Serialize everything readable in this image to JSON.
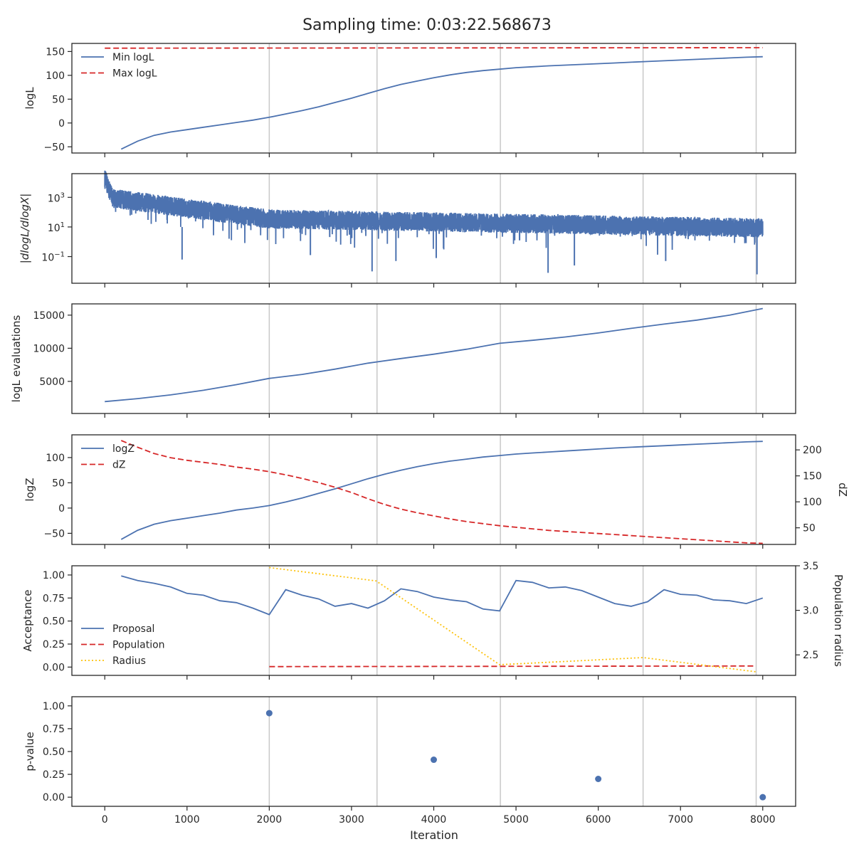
{
  "chart_data": {
    "title": "Sampling time: 0:03:22.568673",
    "xlabel": "Iteration",
    "xlim": [
      -400,
      8400
    ],
    "x_ticks": [
      0,
      1000,
      2000,
      3000,
      4000,
      5000,
      6000,
      7000,
      8000
    ],
    "vlines": [
      2000,
      3310,
      4810,
      6545,
      7920
    ],
    "colors": {
      "blue": "#4c72b0",
      "red": "#d62728",
      "gold": "#fdc20c",
      "vline": "#c8c8c8",
      "axes": "#262626"
    },
    "panels": [
      {
        "type": "line",
        "ylabel": "logL",
        "ylim": [
          -63,
          167
        ],
        "y_ticks": [
          -50,
          0,
          50,
          100,
          150
        ],
        "legend": {
          "placement": "top-left",
          "entries": [
            "Min logL",
            "Max logL"
          ]
        },
        "series": [
          {
            "name": "Min logL",
            "style": "solid",
            "color": "blue",
            "x": [
              200,
              400,
              600,
              800,
              1000,
              1200,
              1400,
              1600,
              1800,
              2000,
              2200,
              2400,
              2600,
              2800,
              3000,
              3200,
              3400,
              3600,
              3800,
              4000,
              4200,
              4400,
              4600,
              4800,
              5000,
              5200,
              5400,
              5600,
              5800,
              6000,
              6200,
              6400,
              6600,
              6800,
              7000,
              7200,
              7400,
              7600,
              7800,
              8000
            ],
            "y": [
              -55,
              -38,
              -26,
              -19,
              -14,
              -9,
              -4,
              1,
              6,
              12,
              19,
              26,
              34,
              43,
              52,
              62,
              72,
              81,
              88,
              95,
              101,
              106,
              110,
              113,
              116,
              118,
              120,
              121.5,
              123,
              124.5,
              126,
              127.5,
              129,
              130.5,
              132,
              133.5,
              135,
              136.5,
              138,
              139
            ]
          },
          {
            "name": "Max logL",
            "style": "dashed",
            "color": "red",
            "x": [
              0,
              8000
            ],
            "y": [
              157,
              158
            ]
          }
        ]
      },
      {
        "type": "line",
        "ylabel": "|dlogL/dlogX|",
        "yscale": "log",
        "ylim_log10": [
          -2.8,
          4.6
        ],
        "y_ticks_log10": [
          -1,
          1,
          3
        ],
        "y_tick_labels": [
          "10",
          "10",
          "10"
        ],
        "y_tick_exponents": [
          "−1",
          "1",
          "3"
        ],
        "series": [
          {
            "name": "",
            "style": "solid",
            "color": "blue",
            "generated_noise": true,
            "x_range": [
              0,
              8000
            ],
            "points": 8000,
            "start_log10": 4.3,
            "mid_log10_at_2000": 1.6,
            "end_log10": 1.0,
            "spikes_down": [
              {
                "x": 940,
                "log10": -1.2
              },
              {
                "x": 2500,
                "log10": -0.9
              },
              {
                "x": 3250,
                "log10": -2.0
              },
              {
                "x": 3540,
                "log10": -1.3
              },
              {
                "x": 4030,
                "log10": -1.1
              },
              {
                "x": 5390,
                "log10": -2.1
              },
              {
                "x": 5710,
                "log10": -1.6
              },
              {
                "x": 6820,
                "log10": -1.3
              },
              {
                "x": 7930,
                "log10": -2.2
              }
            ]
          }
        ]
      },
      {
        "type": "line",
        "ylabel": "logL evaluations",
        "ylim": [
          150,
          16700
        ],
        "y_ticks": [
          5000,
          10000,
          15000
        ],
        "series": [
          {
            "name": "",
            "style": "solid",
            "color": "blue",
            "x": [
              0,
              400,
              800,
              1200,
              1600,
              2000,
              2400,
              2800,
              3200,
              3600,
              4000,
              4400,
              4800,
              5200,
              5600,
              6000,
              6400,
              6800,
              7200,
              7600,
              8000
            ],
            "y": [
              1950,
              2400,
              2950,
              3650,
              4500,
              5450,
              6050,
              6850,
              7750,
              8450,
              9100,
              9850,
              10750,
              11200,
              11700,
              12300,
              13000,
              13650,
              14250,
              15000,
              16000
            ]
          }
        ]
      },
      {
        "type": "line",
        "ylabel": "logZ",
        "ylabel_right": "dZ",
        "ylim": [
          -72,
          145
        ],
        "y_ticks": [
          -50,
          0,
          50,
          100
        ],
        "ylim_right": [
          18,
          229
        ],
        "y_ticks_right": [
          50,
          100,
          150,
          200
        ],
        "legend": {
          "placement": "top-left",
          "entries": [
            "logZ",
            "dZ"
          ]
        },
        "series": [
          {
            "name": "logZ",
            "style": "solid",
            "color": "blue",
            "axis": "left",
            "x": [
              200,
              400,
              600,
              800,
              1000,
              1200,
              1400,
              1600,
              1800,
              2000,
              2200,
              2400,
              2600,
              2800,
              3000,
              3200,
              3400,
              3600,
              3800,
              4000,
              4200,
              4400,
              4600,
              4800,
              5000,
              5200,
              5400,
              5600,
              5800,
              6000,
              6200,
              6400,
              6600,
              6800,
              7000,
              7200,
              7400,
              7600,
              7800,
              8000
            ],
            "y": [
              -62,
              -44,
              -32,
              -25,
              -20,
              -15,
              -10,
              -4,
              0,
              5,
              12,
              20,
              29,
              38,
              48,
              58,
              67,
              75,
              82,
              88,
              93,
              97,
              101,
              104,
              107,
              109,
              111,
              113,
              115,
              117,
              119,
              120.5,
              122,
              123.5,
              125,
              126.5,
              128,
              129.5,
              131,
              132
            ]
          },
          {
            "name": "dZ",
            "style": "dashed",
            "color": "red",
            "axis": "right",
            "x": [
              200,
              400,
              600,
              800,
              1000,
              1200,
              1400,
              1600,
              1800,
              2000,
              2200,
              2400,
              2600,
              2800,
              3000,
              3200,
              3400,
              3600,
              3800,
              4000,
              4200,
              4400,
              4600,
              4800,
              5000,
              5200,
              5400,
              5600,
              5800,
              6000,
              6200,
              6400,
              6600,
              6800,
              7000,
              7200,
              7400,
              7600,
              7800,
              8000
            ],
            "y": [
              218,
              205,
              193,
              185,
              180,
              176,
              172,
              167,
              163,
              158,
              152,
              145,
              137,
              128,
              118,
              106,
              95,
              86,
              79,
              73,
              67,
              62,
              58,
              54,
              51,
              48,
              45,
              43,
              41,
              39,
              37,
              35,
              33,
              31,
              29,
              27,
              25,
              23,
              21,
              20
            ]
          }
        ]
      },
      {
        "type": "line",
        "ylabel": "Acceptance",
        "ylabel_right": "Population radius",
        "ylim": [
          -0.09,
          1.1
        ],
        "y_ticks": [
          0.0,
          0.25,
          0.5,
          0.75,
          1.0
        ],
        "y_tick_labels": [
          "0.00",
          "0.25",
          "0.50",
          "0.75",
          "1.00"
        ],
        "ylim_right": [
          2.27,
          3.5
        ],
        "y_ticks_right": [
          2.5,
          3.0,
          3.5
        ],
        "y_tick_labels_right": [
          "2.5",
          "3.0",
          "3.5"
        ],
        "legend": {
          "placement": "lower-left",
          "entries": [
            "Proposal",
            "Population",
            "Radius"
          ]
        },
        "series": [
          {
            "name": "Proposal",
            "style": "solid",
            "color": "blue",
            "axis": "left",
            "x": [
              200,
              400,
              600,
              800,
              1000,
              1200,
              1400,
              1600,
              1800,
              2000,
              2200,
              2400,
              2600,
              2800,
              3000,
              3200,
              3400,
              3600,
              3800,
              4000,
              4200,
              4400,
              4600,
              4800,
              5000,
              5200,
              5400,
              5600,
              5800,
              6000,
              6200,
              6400,
              6600,
              6800,
              7000,
              7200,
              7400,
              7600,
              7800,
              8000
            ],
            "y": [
              0.99,
              0.94,
              0.91,
              0.87,
              0.8,
              0.78,
              0.72,
              0.7,
              0.64,
              0.57,
              0.84,
              0.78,
              0.74,
              0.66,
              0.69,
              0.64,
              0.72,
              0.85,
              0.82,
              0.76,
              0.73,
              0.71,
              0.63,
              0.61,
              0.94,
              0.92,
              0.86,
              0.87,
              0.83,
              0.76,
              0.69,
              0.66,
              0.71,
              0.84,
              0.79,
              0.78,
              0.73,
              0.72,
              0.69,
              0.75
            ]
          },
          {
            "name": "Population",
            "style": "dashed",
            "color": "red",
            "axis": "left",
            "x": [
              2000,
              4800,
              7900
            ],
            "y": [
              0.005,
              0.008,
              0.012
            ]
          },
          {
            "name": "Radius",
            "style": "dotted",
            "color": "gold",
            "axis": "right",
            "x": [
              2000,
              3300,
              4800,
              6545,
              7920
            ],
            "y": [
              3.48,
              3.33,
              2.39,
              2.47,
              2.31
            ]
          }
        ]
      },
      {
        "type": "scatter",
        "ylabel": "p-value",
        "ylim": [
          -0.1,
          1.1
        ],
        "y_ticks": [
          0.0,
          0.25,
          0.5,
          0.75,
          1.0
        ],
        "y_tick_labels": [
          "0.00",
          "0.25",
          "0.50",
          "0.75",
          "1.00"
        ],
        "series": [
          {
            "name": "",
            "color": "blue",
            "x": [
              2000,
              4000,
              6000,
              8000
            ],
            "y": [
              0.92,
              0.41,
              0.2,
              0.0
            ]
          }
        ]
      }
    ]
  }
}
